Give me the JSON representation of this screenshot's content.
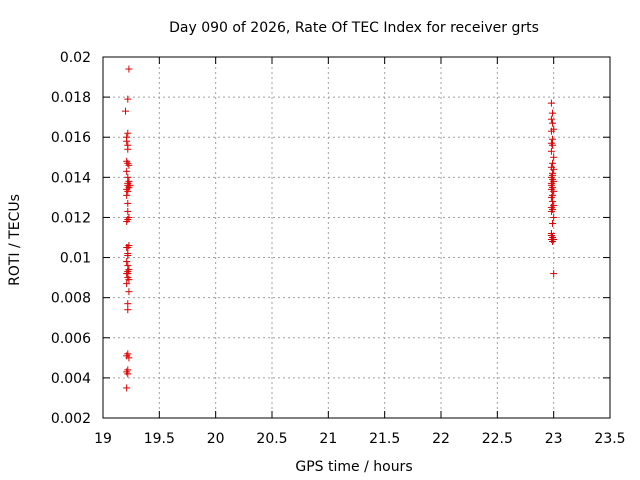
{
  "chart_data": {
    "type": "scatter",
    "title": "Day 090 of 2026, Rate Of TEC Index for receiver grts",
    "xlabel": "GPS time / hours",
    "ylabel": "ROTI / TECUs",
    "xlim": [
      19,
      23.5
    ],
    "ylim": [
      0.002,
      0.02
    ],
    "x_ticks": [
      "19",
      "19.5",
      "20",
      "20.5",
      "21",
      "21.5",
      "22",
      "22.5",
      "23",
      "23.5"
    ],
    "y_ticks": [
      "0.002",
      "0.004",
      "0.006",
      "0.008",
      "0.01",
      "0.012",
      "0.014",
      "0.016",
      "0.018",
      "0.02"
    ],
    "grid": true,
    "marker": "+",
    "marker_color": "#dd0000",
    "series": [
      {
        "x": [
          19.23,
          19.22,
          19.2,
          19.22,
          19.21,
          19.21,
          19.22,
          19.22,
          19.21,
          19.22,
          19.23,
          19.21,
          19.22,
          19.23,
          19.22,
          19.24,
          19.22,
          19.23,
          19.21,
          19.22,
          19.21,
          19.22,
          19.22,
          19.23,
          19.22,
          19.21,
          19.23,
          19.22,
          19.21,
          19.22,
          19.21,
          19.22,
          19.23,
          19.22,
          19.22,
          19.21,
          19.22,
          19.23,
          19.21,
          19.23,
          19.22,
          19.22,
          19.22,
          19.21,
          19.23,
          19.22,
          19.21,
          19.22,
          19.21,
          19.22
        ],
        "y": [
          0.0194,
          0.0179,
          0.0173,
          0.0162,
          0.016,
          0.0158,
          0.0156,
          0.0154,
          0.0148,
          0.0147,
          0.0146,
          0.0143,
          0.014,
          0.0138,
          0.0137,
          0.0136,
          0.0136,
          0.0135,
          0.0134,
          0.0133,
          0.0131,
          0.0127,
          0.0123,
          0.012,
          0.0119,
          0.0118,
          0.0106,
          0.0105,
          0.0105,
          0.0102,
          0.0098,
          0.0096,
          0.0094,
          0.0093,
          0.0092,
          0.0092,
          0.009,
          0.0089,
          0.0087,
          0.0083,
          0.0077,
          0.0074,
          0.0052,
          0.0051,
          0.005,
          0.0044,
          0.0043,
          0.0042,
          0.0035,
          0.0101
        ]
      },
      {
        "x": [
          22.98,
          22.99,
          22.98,
          22.99,
          23.0,
          22.98,
          22.99,
          22.98,
          22.99,
          22.98,
          23.0,
          22.99,
          22.98,
          23.0,
          22.99,
          22.98,
          22.99,
          23.0,
          22.98,
          22.99,
          22.98,
          23.0,
          22.99,
          22.98,
          22.99,
          23.0,
          22.98,
          22.99,
          22.98,
          23.0,
          22.99,
          22.98,
          22.99,
          23.0,
          22.98,
          22.99,
          22.98,
          23.0,
          22.99,
          22.98
        ],
        "y": [
          0.0177,
          0.0172,
          0.0169,
          0.0167,
          0.0164,
          0.0163,
          0.0159,
          0.0157,
          0.0156,
          0.0153,
          0.015,
          0.0147,
          0.0145,
          0.0144,
          0.0142,
          0.014,
          0.0139,
          0.0138,
          0.0137,
          0.0135,
          0.0134,
          0.0133,
          0.0131,
          0.013,
          0.0128,
          0.0126,
          0.0125,
          0.0124,
          0.0123,
          0.012,
          0.0117,
          0.0112,
          0.011,
          0.0109,
          0.0109,
          0.0108,
          0.0111,
          0.0092,
          0.0141,
          0.0136
        ]
      }
    ]
  }
}
